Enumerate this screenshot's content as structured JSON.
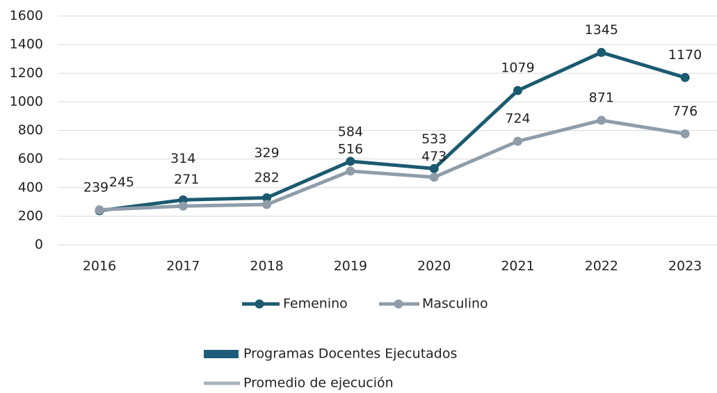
{
  "chart_data": {
    "type": "line",
    "categories": [
      "2016",
      "2017",
      "2018",
      "2019",
      "2020",
      "2021",
      "2022",
      "2023"
    ],
    "series": [
      {
        "name": "Femenino",
        "color": "#1b5a70",
        "values": [
          239,
          314,
          329,
          584,
          533,
          1079,
          1345,
          1170
        ]
      },
      {
        "name": "Masculino",
        "color": "#8f9daa",
        "values": [
          245,
          271,
          282,
          516,
          473,
          724,
          871,
          776
        ]
      }
    ],
    "ylim": [
      0,
      1600
    ],
    "yticks": [
      0,
      200,
      400,
      600,
      800,
      1000,
      1200,
      1400,
      1600
    ],
    "grid": true,
    "extra_legend": [
      {
        "name": "Programas Docentes Ejecutados",
        "color": "#1d5c7a",
        "kind": "bar"
      },
      {
        "name": "Promedio de ejecución",
        "color": "#a7b4bf",
        "kind": "line"
      }
    ]
  }
}
